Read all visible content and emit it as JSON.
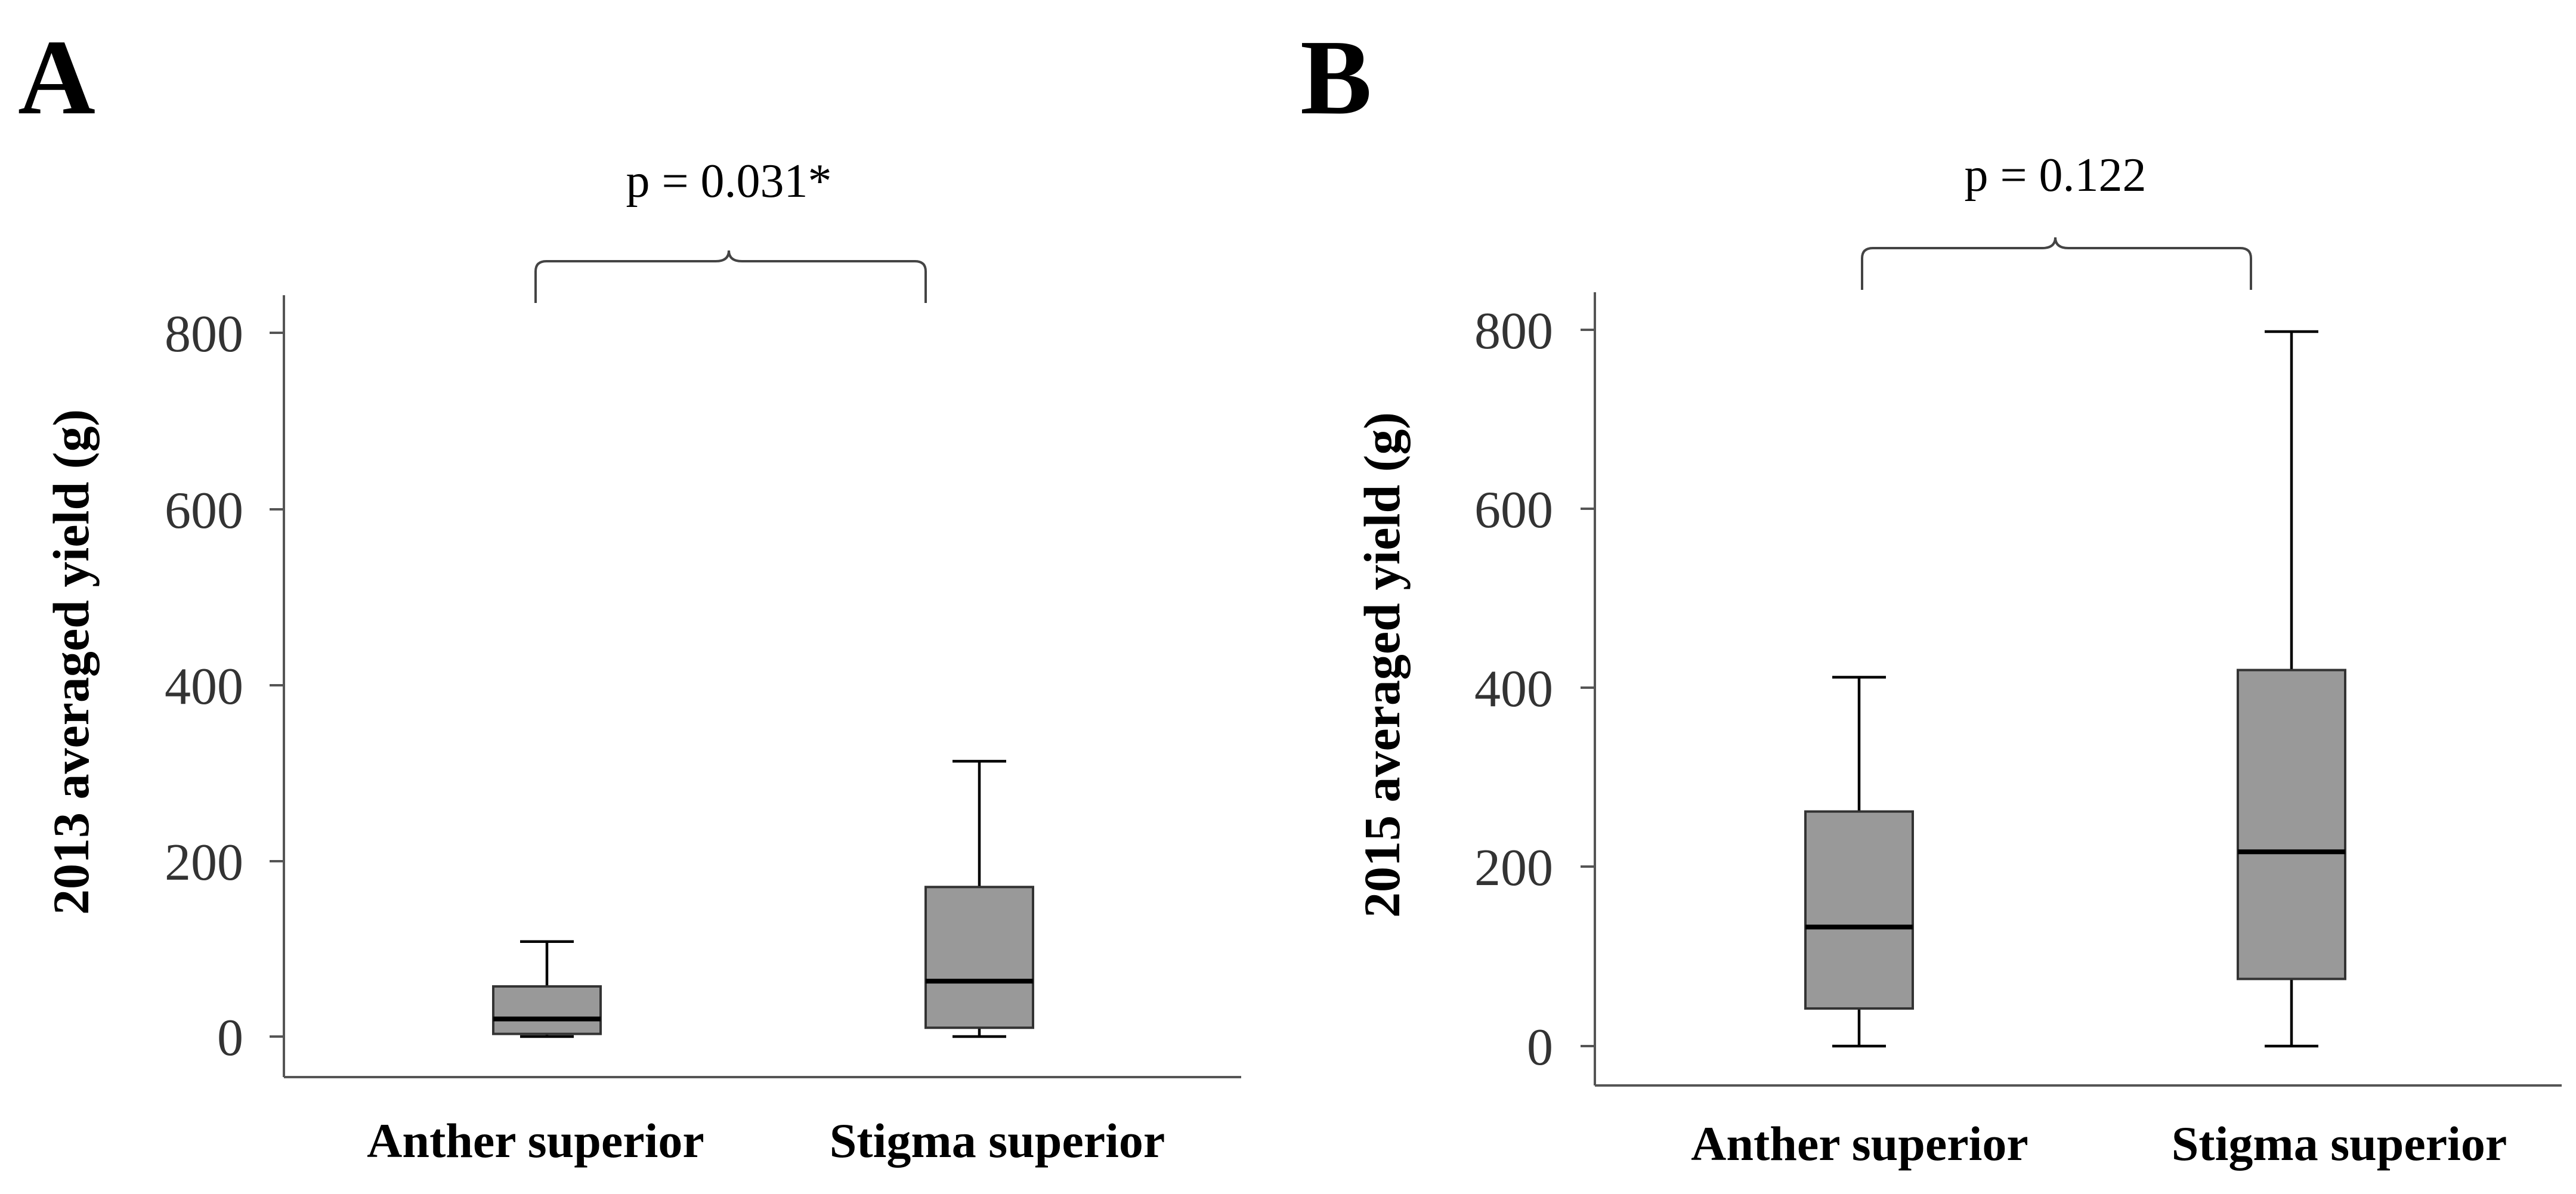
{
  "chart_data": [
    {
      "type": "box",
      "panel_label": "A",
      "ylabel": "2013 averaged yield (g)",
      "ylim": [
        0,
        800
      ],
      "yticks": [
        "0",
        "200",
        "400",
        "600",
        "800"
      ],
      "categories": [
        "Anther superior",
        "Stigma superior"
      ],
      "boxes": [
        {
          "category": "Anther superior",
          "min": 0,
          "q1": 3,
          "median": 20,
          "q3": 57,
          "max": 108
        },
        {
          "category": "Stigma superior",
          "min": 0,
          "q1": 10,
          "median": 63,
          "q3": 170,
          "max": 313
        }
      ],
      "annotation": "p = 0.031*"
    },
    {
      "type": "box",
      "panel_label": "B",
      "ylabel": "2015 averaged yield (g)",
      "ylim": [
        0,
        800
      ],
      "yticks": [
        "0",
        "200",
        "400",
        "600",
        "800"
      ],
      "categories": [
        "Anther superior",
        "Stigma superior"
      ],
      "boxes": [
        {
          "category": "Anther superior",
          "min": 0,
          "q1": 42,
          "median": 133,
          "q3": 262,
          "max": 412
        },
        {
          "category": "Stigma superior",
          "min": 0,
          "q1": 75,
          "median": 217,
          "q3": 420,
          "max": 798
        }
      ],
      "annotation": "p = 0.122"
    }
  ]
}
